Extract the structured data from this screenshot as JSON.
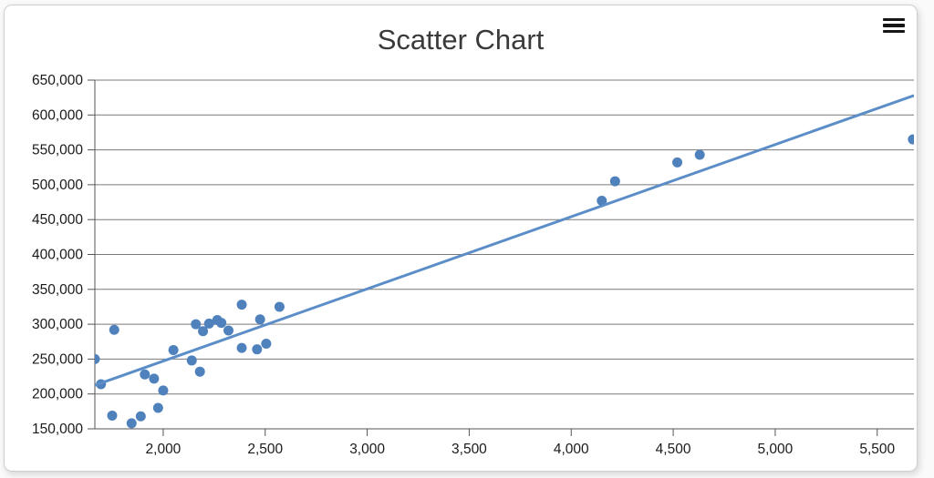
{
  "header": {
    "title": "Scatter Chart",
    "menu_icon": "hamburger-menu-icon"
  },
  "colors": {
    "point": "#4f81bc",
    "trend_line": "#5b8dc8",
    "grid": "#7a7a7a",
    "axis": "#555555",
    "tick": "#555555",
    "label_text": "#1a1a1a",
    "title_text": "#3a3a3a",
    "card_background": "#ffffff"
  },
  "chart_data": {
    "type": "scatter",
    "title": "Scatter Chart",
    "xlabel": "",
    "ylabel": "",
    "legend": "none",
    "grid": "horizontal-only",
    "xlim": [
      1665,
      5680
    ],
    "ylim": [
      150000,
      650000
    ],
    "x_ticks": [
      2000,
      2500,
      3000,
      3500,
      4000,
      4500,
      5000,
      5500
    ],
    "x_tick_labels": [
      "2,000",
      "2,500",
      "3,000",
      "3,500",
      "4,000",
      "4,500",
      "5,000",
      "5,500"
    ],
    "y_ticks": [
      150000,
      200000,
      250000,
      300000,
      350000,
      400000,
      450000,
      500000,
      550000,
      600000,
      650000
    ],
    "y_tick_labels": [
      "150,000",
      "200,000",
      "250,000",
      "300,000",
      "350,000",
      "400,000",
      "450,000",
      "500,000",
      "550,000",
      "600,000",
      "650,000"
    ],
    "series": [
      {
        "name": "scatter-points",
        "type": "scatter",
        "color": "#4f81bc",
        "marker_radius": 5.5,
        "points": [
          [
            1665,
            250000
          ],
          [
            1695,
            214000
          ],
          [
            1750,
            169000
          ],
          [
            1760,
            292000
          ],
          [
            1845,
            158000
          ],
          [
            1890,
            168000
          ],
          [
            1910,
            228000
          ],
          [
            1955,
            222000
          ],
          [
            1975,
            180000
          ],
          [
            2000,
            205000
          ],
          [
            2050,
            263000
          ],
          [
            2140,
            248000
          ],
          [
            2160,
            300000
          ],
          [
            2180,
            232000
          ],
          [
            2195,
            290000
          ],
          [
            2225,
            301000
          ],
          [
            2265,
            306000
          ],
          [
            2285,
            302000
          ],
          [
            2320,
            291000
          ],
          [
            2385,
            266000
          ],
          [
            2385,
            328000
          ],
          [
            2460,
            264000
          ],
          [
            2475,
            307000
          ],
          [
            2505,
            272000
          ],
          [
            2570,
            325000
          ],
          [
            4150,
            477000
          ],
          [
            4215,
            505000
          ],
          [
            4520,
            532000
          ],
          [
            4630,
            543000
          ],
          [
            5675,
            565000
          ]
        ]
      },
      {
        "name": "trend-line",
        "type": "line",
        "color": "#5b8dc8",
        "stroke_width": 3,
        "points": [
          [
            1665,
            212500
          ],
          [
            5680,
            628000
          ]
        ]
      }
    ]
  }
}
